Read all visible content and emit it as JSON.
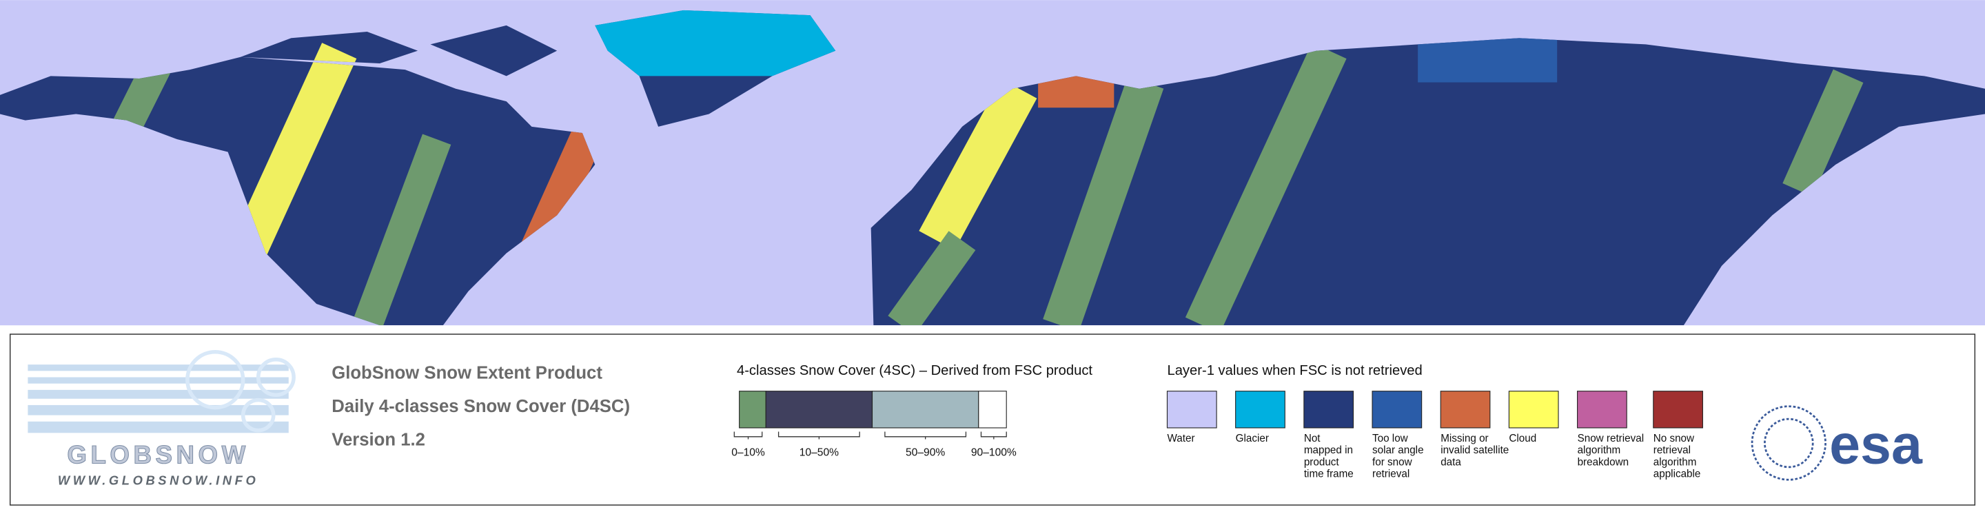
{
  "header": {
    "lines": [
      "GlobSnow Snow Extent Product",
      "Daily 4-classes Snow Cover (D4SC)",
      "Version 1.2"
    ]
  },
  "logo": {
    "name": "GLOBSNOW",
    "url": "WWW.GLOBSNOW.INFO"
  },
  "fsc_legend": {
    "title": "4-classes Snow Cover (4SC) – Derived from FSC product",
    "classes": [
      {
        "label": "0–10%",
        "color": "#6e9a6e"
      },
      {
        "label": "10–50%",
        "color": "#40405e"
      },
      {
        "label": "50–90%",
        "color": "#a2b9c0"
      },
      {
        "label": "90–100%",
        "color": "#ffffff"
      }
    ]
  },
  "layer1_legend": {
    "title": "Layer-1 values when FSC is not retrieved",
    "items": [
      {
        "lines": [
          "Water"
        ],
        "color": "#c8c8f8"
      },
      {
        "lines": [
          "Glacier"
        ],
        "color": "#00b0e0"
      },
      {
        "lines": [
          "Not",
          "mapped in",
          "product",
          "time frame"
        ],
        "color": "#253a7a"
      },
      {
        "lines": [
          "Too low",
          "solar angle",
          "for snow",
          "retrieval"
        ],
        "color": "#2a5ca8"
      },
      {
        "lines": [
          "Missing or",
          "invalid satellite",
          "data"
        ],
        "color": "#d06840"
      },
      {
        "lines": [
          "Cloud"
        ],
        "color": "#ffff60"
      },
      {
        "lines": [
          "Snow retrieval",
          "algorithm",
          "breakdown"
        ],
        "color": "#c060a0"
      },
      {
        "lines": [
          "No snow",
          "retrieval",
          "algorithm",
          "applicable"
        ],
        "color": "#a03030"
      }
    ]
  },
  "agency": {
    "name": "esa"
  }
}
